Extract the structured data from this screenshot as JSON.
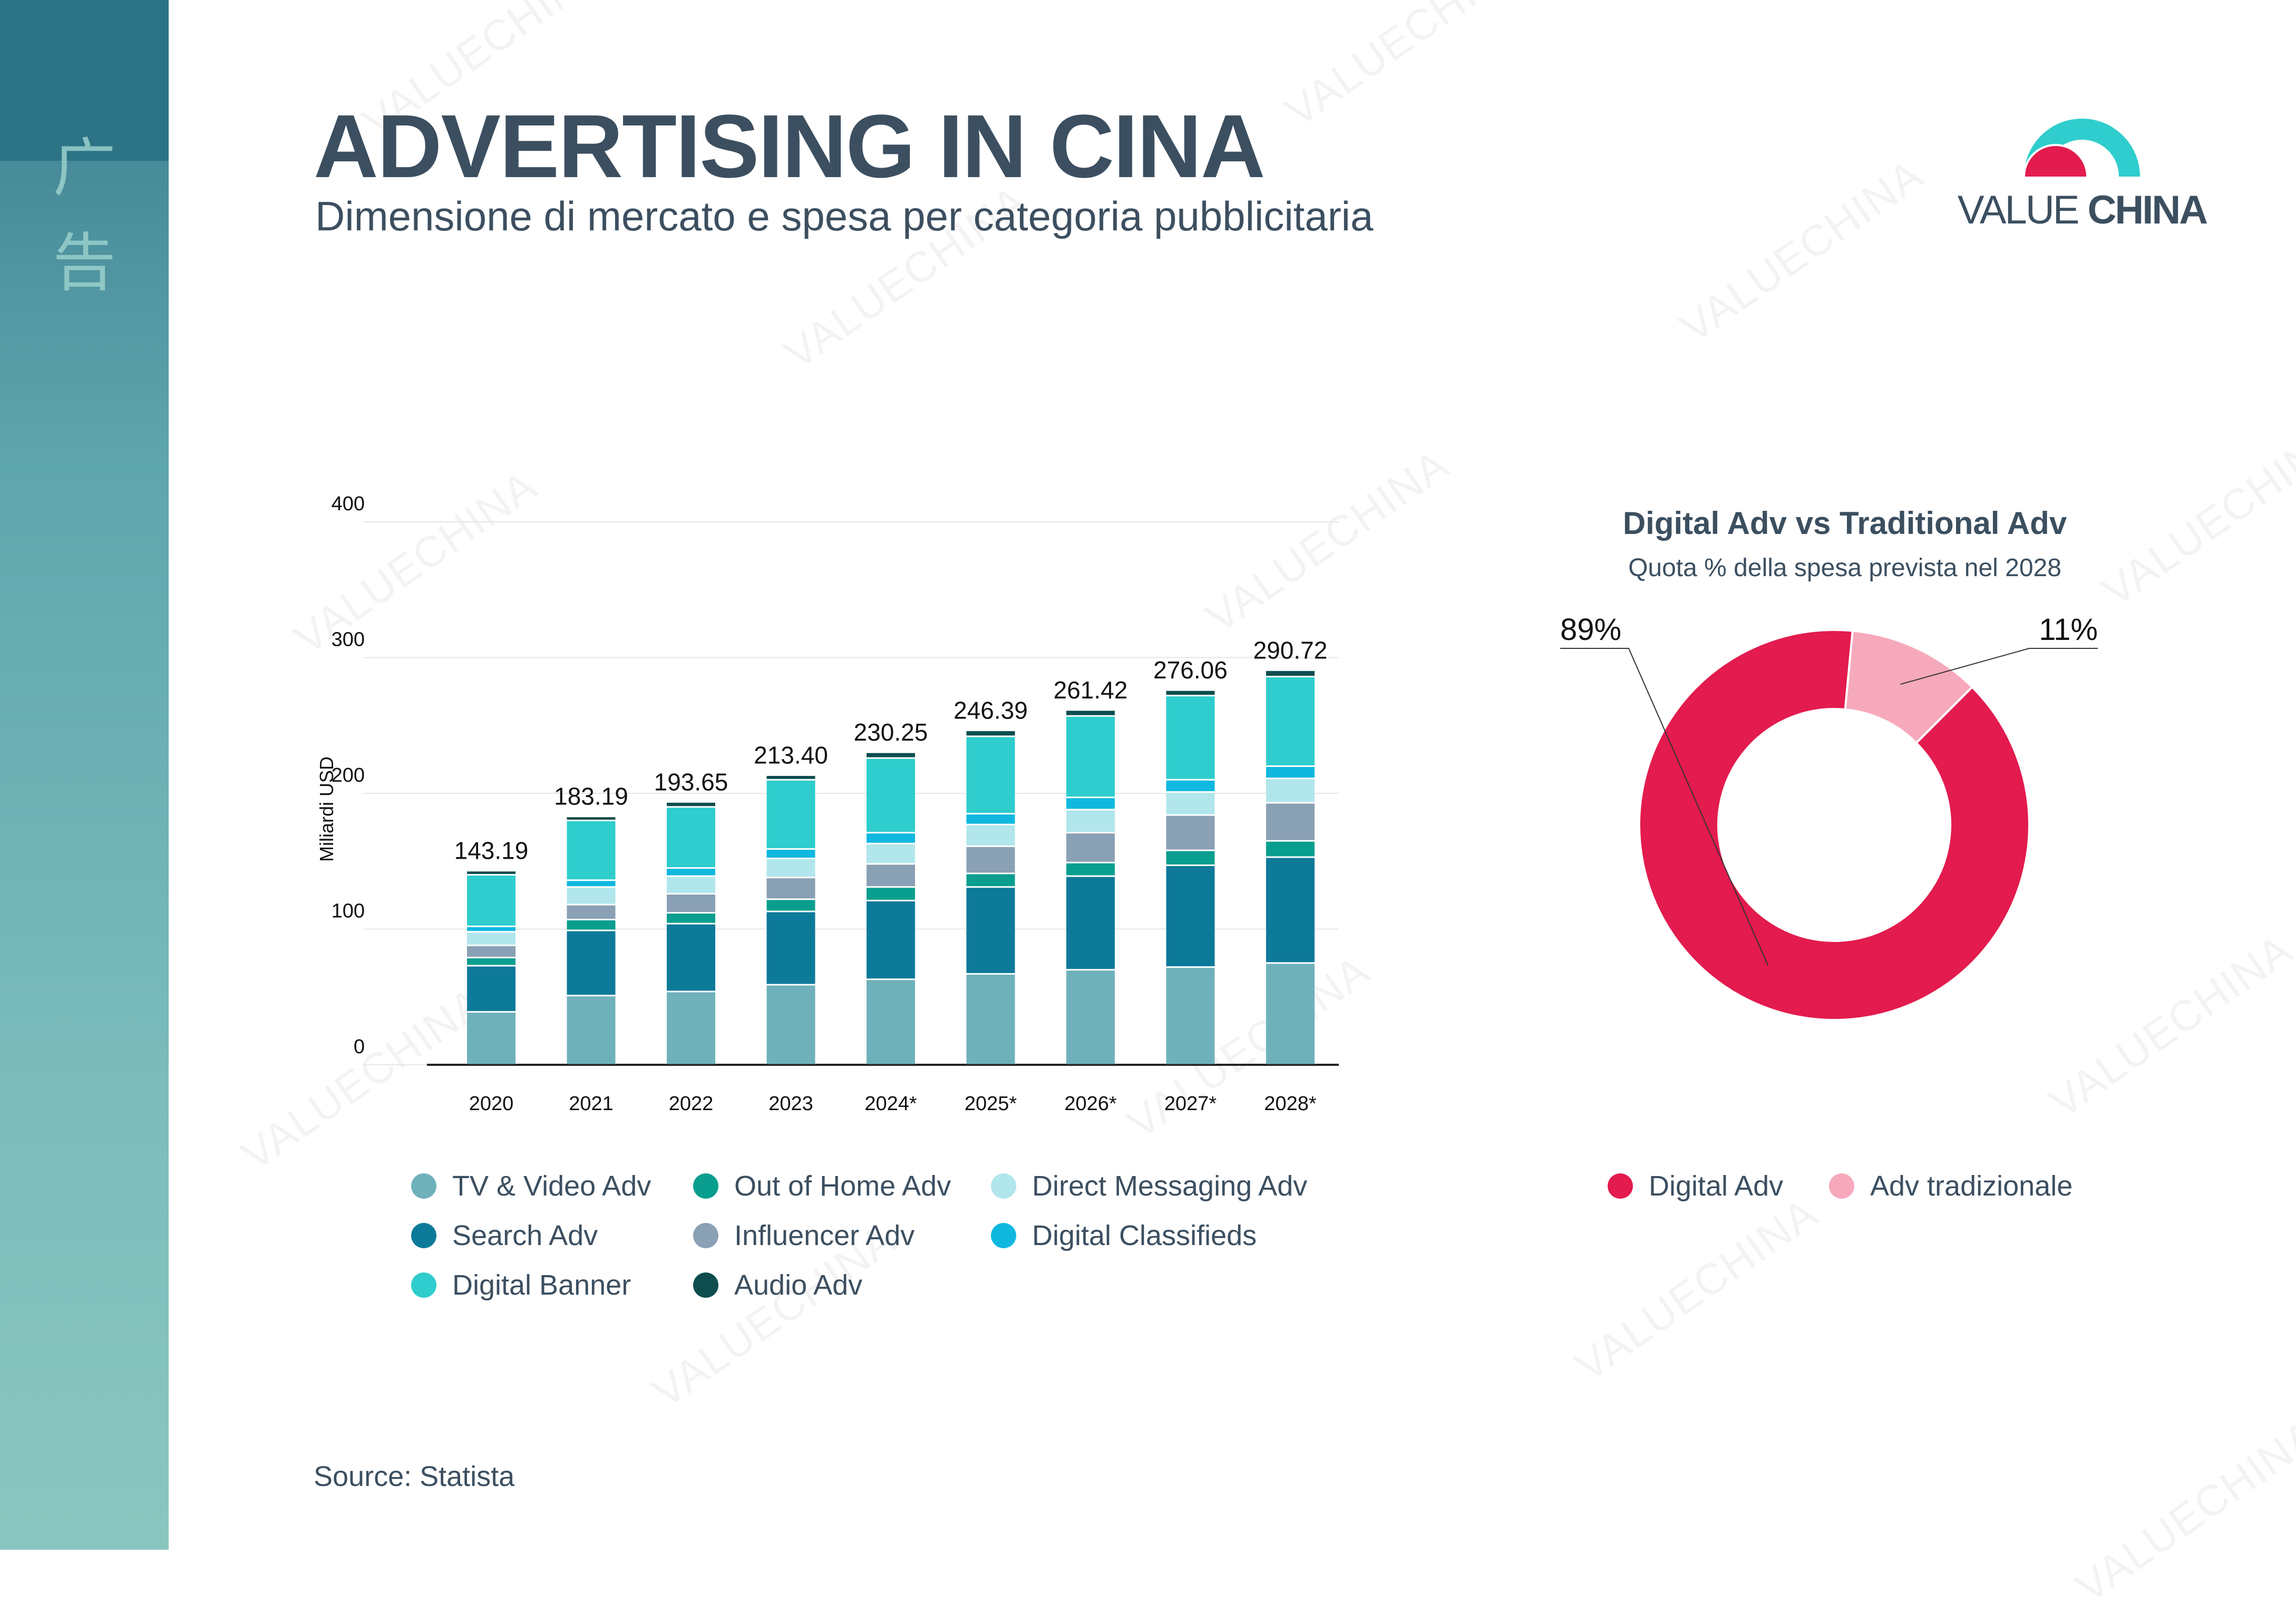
{
  "header": {
    "title": "ADVERTISING IN CINA",
    "subtitle": "Dimensione di mercato e spesa per categoria pubblicitaria"
  },
  "sidebar": {
    "glyphs": [
      "广",
      "告"
    ]
  },
  "logo": {
    "text_regular": "VALUE ",
    "text_bold": "CHINA"
  },
  "watermark_text": "VALUECHINA",
  "source": "Source: Statista",
  "colors": {
    "title": "#3c4f60",
    "sidebar_top": "#2b7385",
    "digital": "#e31b4e",
    "traditional": "#f7a9bc"
  },
  "chart_data": [
    {
      "type": "bar",
      "stacked": true,
      "ylabel": "Miliardi USD",
      "xlabel": "",
      "ylim": [
        0,
        400
      ],
      "yticks": [
        0,
        100,
        200,
        300,
        400
      ],
      "grid": true,
      "categories": [
        "2020",
        "2021",
        "2022",
        "2023",
        "2024*",
        "2025*",
        "2026*",
        "2027*",
        "2028*"
      ],
      "totals": [
        143.19,
        183.19,
        193.65,
        213.4,
        230.25,
        246.39,
        261.42,
        276.06,
        290.72
      ],
      "total_labels": [
        "143.19",
        "183.19",
        "193.65",
        "213.40",
        "230.25",
        "246.39",
        "261.42",
        "276.06",
        "290.72"
      ],
      "series": [
        {
          "name": "TV & Video Adv",
          "color": "#6fb1bb",
          "values": [
            39,
            51,
            54,
            59,
            63,
            67,
            70,
            72,
            75
          ]
        },
        {
          "name": "Search Adv",
          "color": "#0e7a9a",
          "values": [
            34,
            48,
            50,
            54,
            58,
            64,
            69,
            75,
            78
          ]
        },
        {
          "name": "Out of Home Adv",
          "color": "#0a9e8f",
          "values": [
            6,
            8,
            8,
            9,
            10,
            10,
            10,
            11,
            12
          ]
        },
        {
          "name": "Influencer Adv",
          "color": "#8aa0b4",
          "values": [
            9,
            11,
            14,
            16,
            17,
            20,
            22,
            26,
            28
          ]
        },
        {
          "name": "Direct Messaging Adv",
          "color": "#b1e6ec",
          "values": [
            10,
            13,
            13,
            14,
            15,
            16,
            17,
            17,
            18
          ]
        },
        {
          "name": "Digital Classifieds",
          "color": "#10b8e0",
          "values": [
            4,
            5,
            6,
            7,
            8,
            8,
            9,
            9,
            9
          ]
        },
        {
          "name": "Digital Banner",
          "color": "#2fcdcd",
          "values": [
            38,
            44,
            45,
            51,
            55,
            57,
            60,
            62,
            66
          ]
        },
        {
          "name": "Audio Adv",
          "color": "#0d4d4e",
          "values": [
            3,
            3,
            3.65,
            3.4,
            4.25,
            4.39,
            4.42,
            4.06,
            4.72
          ]
        }
      ],
      "legend_position": "bottom"
    },
    {
      "type": "pie",
      "donut": true,
      "title": "Digital Adv vs Traditional Adv",
      "subtitle": "Quota % della spesa prevista nel 2028",
      "categories": [
        "Digital Adv",
        "Adv tradizionale"
      ],
      "values": [
        89,
        11
      ],
      "labels": [
        "89%",
        "11%"
      ],
      "colors": [
        "#e31b4e",
        "#f7a9bc"
      ],
      "legend_position": "bottom"
    }
  ]
}
